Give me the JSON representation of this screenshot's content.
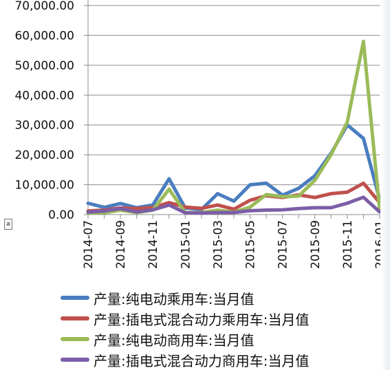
{
  "chart_data": {
    "type": "line",
    "title": "",
    "xlabel": "",
    "ylabel": "",
    "ylim": [
      0,
      70000
    ],
    "yticks": [
      "0.00",
      "10,000.00",
      "20,000.00",
      "30,000.00",
      "40,000.00",
      "50,000.00",
      "60,000.00",
      "70,000.00"
    ],
    "ytick_values": [
      0,
      10000,
      20000,
      30000,
      40000,
      50000,
      60000,
      70000
    ],
    "x": [
      "2014-07",
      "2014-08",
      "2014-09",
      "2014-10",
      "2014-11",
      "2014-12",
      "2015-01",
      "2015-02",
      "2015-03",
      "2015-04",
      "2015-05",
      "2015-06",
      "2015-07",
      "2015-08",
      "2015-09",
      "2015-10",
      "2015-11",
      "2015-12",
      "2016-01"
    ],
    "xtick_labels": [
      "2014-07",
      "2014-09",
      "2014-11",
      "2015-01",
      "2015-03",
      "2015-05",
      "2015-07",
      "2015-09",
      "2015-11",
      "2016-01"
    ],
    "grid": true,
    "legend_position": "bottom",
    "series": [
      {
        "name": "产量:纯电动乘用车:当月值",
        "color": "#4a7dbf",
        "values": [
          3800,
          2400,
          3700,
          2300,
          3200,
          12000,
          2200,
          1700,
          7000,
          4500,
          10000,
          10500,
          6500,
          8800,
          13000,
          20500,
          30000,
          25500,
          5000
        ]
      },
      {
        "name": "产量:插电式混合动力乘用车:当月值",
        "color": "#c0504d",
        "values": [
          1200,
          1500,
          2200,
          2000,
          2400,
          4000,
          2500,
          2100,
          3200,
          1800,
          4800,
          6300,
          5700,
          6600,
          5700,
          7000,
          7500,
          10500,
          4000
        ]
      },
      {
        "name": "产量:纯电动商用车:当月值",
        "color": "#9bbb59",
        "values": [
          500,
          600,
          1500,
          700,
          1500,
          8500,
          700,
          700,
          1500,
          800,
          2500,
          6700,
          6000,
          6200,
          11500,
          20000,
          31000,
          58000,
          1500
        ]
      },
      {
        "name": "产量:插电式混合动力商用车:当月值",
        "color": "#7b5ea7",
        "values": [
          800,
          1200,
          2000,
          900,
          1600,
          3200,
          600,
          500,
          700,
          700,
          1300,
          1500,
          1600,
          2000,
          2300,
          2300,
          3800,
          5800,
          900
        ]
      }
    ]
  },
  "corner_box_label": "a"
}
